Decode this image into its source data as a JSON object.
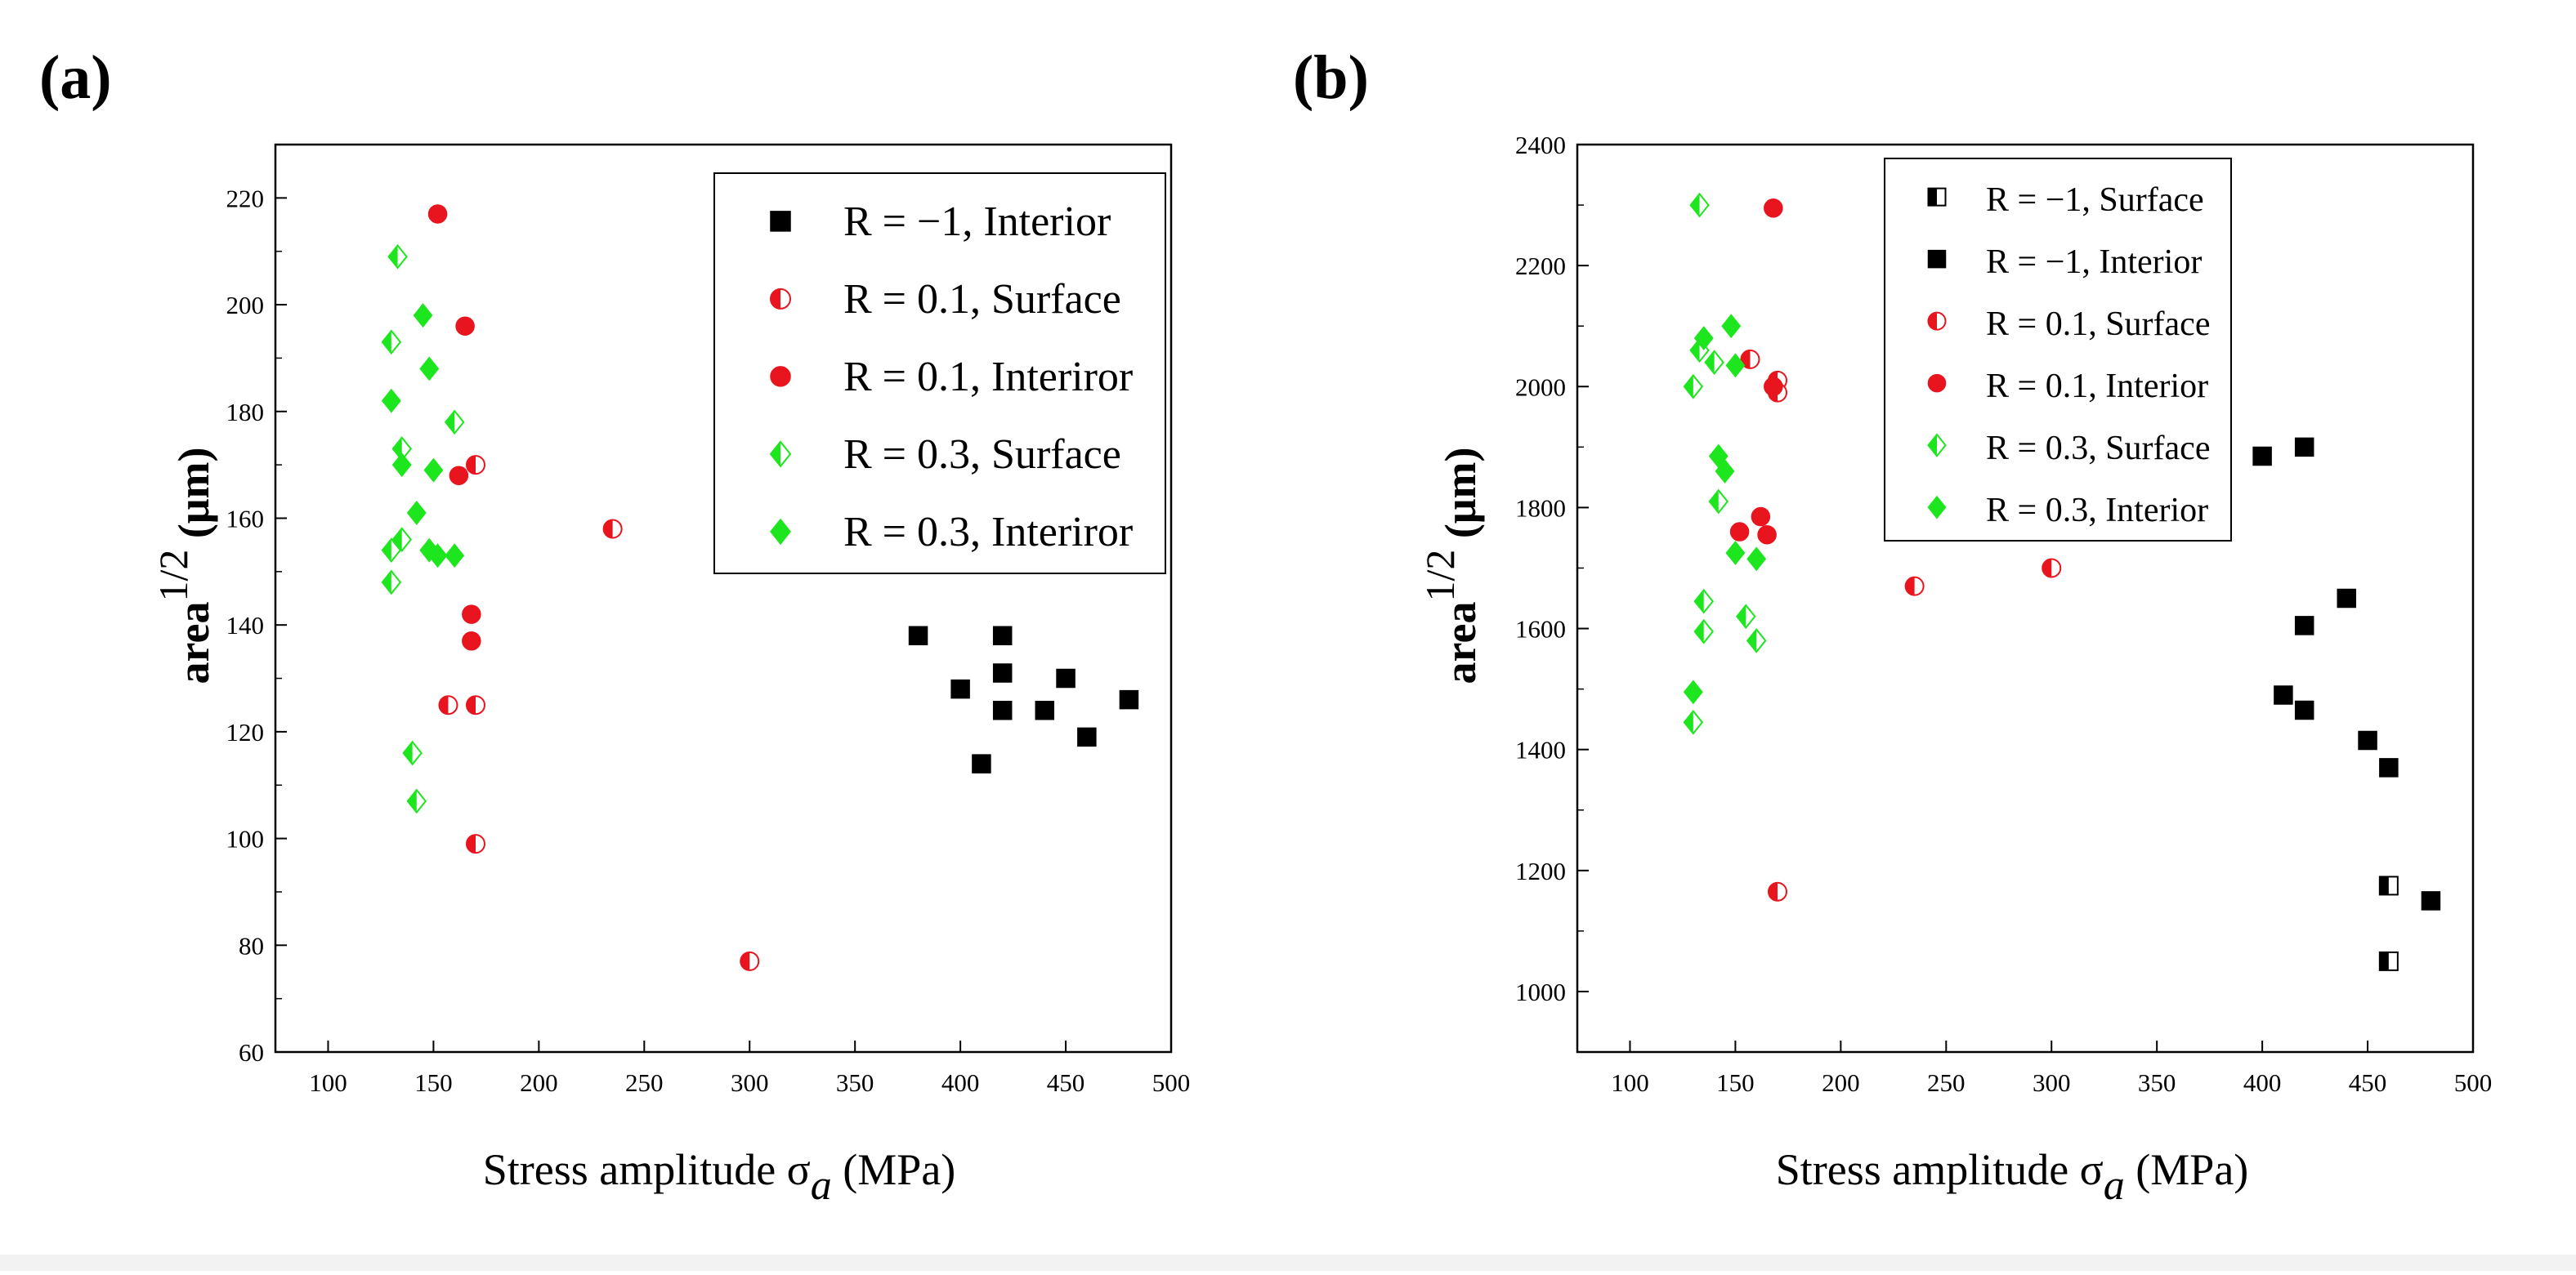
{
  "colors": {
    "black": "#000000",
    "red": "#e8141e",
    "green": "#1ee61e"
  },
  "chart_data": [
    {
      "panel": "(a)",
      "type": "scatter",
      "xlabel": {
        "main": "Stress amplitude σ",
        "sub": "a",
        "unit": " (MPa)"
      },
      "ylabel": {
        "main": "area",
        "sup": "1/2",
        "unit": " (μm)"
      },
      "xlim": [
        75,
        500
      ],
      "ylim": [
        60,
        230
      ],
      "xticks": [
        100,
        150,
        200,
        250,
        300,
        350,
        400,
        450,
        500
      ],
      "yticks": [
        60,
        80,
        100,
        120,
        140,
        160,
        180,
        200,
        220
      ],
      "legend_position": "top-right",
      "series": [
        {
          "name": "R = −1, Interior",
          "color": "#000000",
          "marker": "square",
          "fill": "full",
          "points": [
            [
              380,
              138
            ],
            [
              400,
              128
            ],
            [
              410,
              114
            ],
            [
              420,
              138
            ],
            [
              420,
              131
            ],
            [
              420,
              124
            ],
            [
              440,
              124
            ],
            [
              450,
              130
            ],
            [
              460,
              119
            ],
            [
              480,
              126
            ]
          ]
        },
        {
          "name": "R = 0.1, Surface",
          "color": "#e8141e",
          "marker": "circle",
          "fill": "half",
          "points": [
            [
              157,
              125
            ],
            [
              170,
              125
            ],
            [
              170,
              170
            ],
            [
              170,
              99
            ],
            [
              235,
              158
            ],
            [
              300,
              77
            ]
          ]
        },
        {
          "name": "R = 0.1, Interiror",
          "color": "#e8141e",
          "marker": "circle",
          "fill": "full",
          "points": [
            [
              152,
              217
            ],
            [
              165,
              196
            ],
            [
              162,
              168
            ],
            [
              168,
              142
            ],
            [
              168,
              137
            ]
          ]
        },
        {
          "name": "R = 0.3, Surface",
          "color": "#1ee61e",
          "marker": "diamond",
          "fill": "half",
          "points": [
            [
              133,
              209
            ],
            [
              130,
              193
            ],
            [
              135,
              173
            ],
            [
              135,
              156
            ],
            [
              130,
              154
            ],
            [
              130,
              148
            ],
            [
              140,
              116
            ],
            [
              142,
              107
            ],
            [
              160,
              178
            ]
          ]
        },
        {
          "name": "R = 0.3, Interiror",
          "color": "#1ee61e",
          "marker": "diamond",
          "fill": "full",
          "points": [
            [
              145,
              198
            ],
            [
              148,
              188
            ],
            [
              130,
              182
            ],
            [
              135,
              170
            ],
            [
              150,
              169
            ],
            [
              142,
              161
            ],
            [
              148,
              154
            ],
            [
              152,
              153
            ],
            [
              160,
              153
            ]
          ]
        }
      ]
    },
    {
      "panel": "(b)",
      "type": "scatter",
      "xlabel": {
        "main": "Stress amplitude σ",
        "sub": "a",
        "unit": " (MPa)"
      },
      "ylabel": {
        "main": "area",
        "sup": "1/2",
        "unit": " (μm)"
      },
      "xlim": [
        75,
        500
      ],
      "ylim": [
        900,
        2400
      ],
      "xticks": [
        100,
        150,
        200,
        250,
        300,
        350,
        400,
        450,
        500
      ],
      "yticks": [
        1000,
        1200,
        1400,
        1600,
        1800,
        2000,
        2200,
        2400
      ],
      "legend_position": "top-right",
      "series": [
        {
          "name": "R = −1, Surface",
          "color": "#000000",
          "marker": "square",
          "fill": "half",
          "points": [
            [
              460,
              1175
            ],
            [
              460,
              1050
            ]
          ]
        },
        {
          "name": "R = −1, Interior",
          "color": "#000000",
          "marker": "square",
          "fill": "full",
          "points": [
            [
              400,
              1885
            ],
            [
              420,
              1900
            ],
            [
              420,
              1605
            ],
            [
              440,
              1650
            ],
            [
              410,
              1490
            ],
            [
              420,
              1465
            ],
            [
              450,
              1415
            ],
            [
              460,
              1370
            ],
            [
              480,
              1150
            ]
          ]
        },
        {
          "name": "R = 0.1, Surface",
          "color": "#e8141e",
          "marker": "circle",
          "fill": "half",
          "points": [
            [
              157,
              2045
            ],
            [
              170,
              2010
            ],
            [
              170,
              1990
            ],
            [
              235,
              1670
            ],
            [
              300,
              1700
            ],
            [
              170,
              1165
            ]
          ]
        },
        {
          "name": "R = 0.1, Interior",
          "color": "#e8141e",
          "marker": "circle",
          "fill": "full",
          "points": [
            [
              168,
              2295
            ],
            [
              168,
              2000
            ],
            [
              162,
              1785
            ],
            [
              152,
              1760
            ],
            [
              165,
              1755
            ]
          ]
        },
        {
          "name": "R = 0.3, Surface",
          "color": "#1ee61e",
          "marker": "diamond",
          "fill": "half",
          "points": [
            [
              133,
              2300
            ],
            [
              133,
              2060
            ],
            [
              140,
              2040
            ],
            [
              130,
              2000
            ],
            [
              142,
              1810
            ],
            [
              135,
              1645
            ],
            [
              135,
              1595
            ],
            [
              155,
              1620
            ],
            [
              160,
              1580
            ],
            [
              130,
              1445
            ]
          ]
        },
        {
          "name": "R = 0.3, Interior",
          "color": "#1ee61e",
          "marker": "diamond",
          "fill": "full",
          "points": [
            [
              135,
              2080
            ],
            [
              148,
              2100
            ],
            [
              150,
              2035
            ],
            [
              142,
              1885
            ],
            [
              145,
              1860
            ],
            [
              150,
              1725
            ],
            [
              160,
              1715
            ],
            [
              130,
              1495
            ]
          ]
        }
      ]
    }
  ]
}
